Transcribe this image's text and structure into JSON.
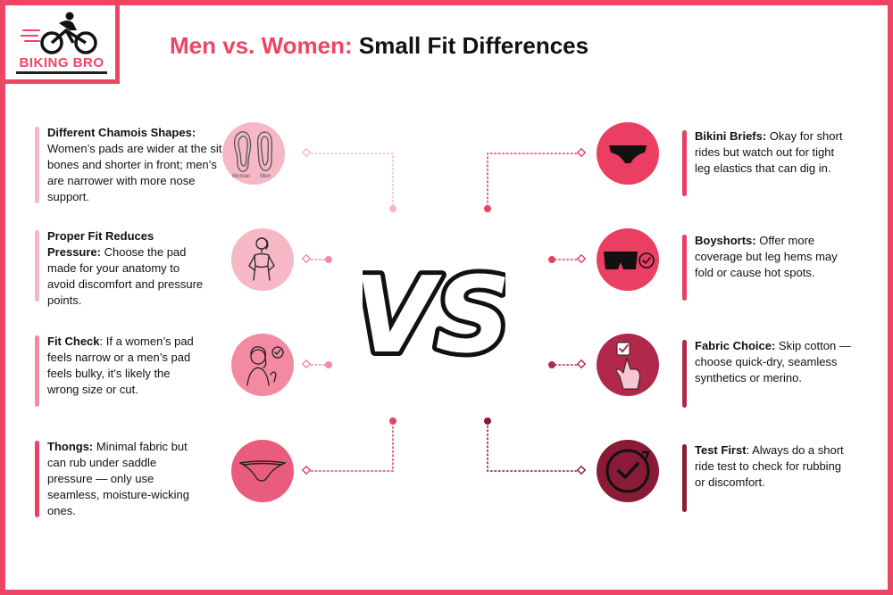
{
  "logo": {
    "text": "BIKING BRO"
  },
  "title": {
    "accent": "Men vs. Women:",
    "rest": " Small Fit Differences"
  },
  "center": {
    "vs": "VS"
  },
  "colors": {
    "accent": "#ef4565",
    "pink_light": "#f7b8c6",
    "pink_mid": "#f38aa2",
    "rose": "#ea3f63",
    "maroon": "#b0284a",
    "dark": "#8a1b37"
  },
  "left_items": [
    {
      "heading": "Different Chamois Shapes:",
      "text": " Women’s pads are wider at the sit bones and shorter in front; men’s are narrower with more nose support.",
      "icon": "chamois-pads-icon",
      "icon_labels": [
        "Women",
        "Men"
      ]
    },
    {
      "heading": "Proper Fit Reduces Pressure:",
      "text": " Choose the pad made for your anatomy to avoid discomfort and pressure points.",
      "icon": "woman-figure-icon"
    },
    {
      "heading": "Fit Check",
      "text": ": If a women’s pad feels narrow or a men’s pad feels bulky, it’s likely the wrong size or cut.",
      "icon": "woman-check-icon"
    },
    {
      "heading": "Thongs:",
      "text": " Minimal fabric but can rub under saddle pressure — only use seamless, moisture-wicking ones.",
      "icon": "thong-icon"
    }
  ],
  "right_items": [
    {
      "heading": "Bikini Briefs:",
      "text": " Okay for short rides but watch out for tight leg elastics that can dig in.",
      "icon": "bikini-brief-icon"
    },
    {
      "heading": "Boyshorts:",
      "text": " Offer more coverage but leg hems may fold or cause hot spots.",
      "icon": "boyshorts-icon"
    },
    {
      "heading": "Fabric Choice:",
      "text": " Skip cotton — choose quick-dry, seamless synthetics or merino.",
      "icon": "hand-checkbox-icon"
    },
    {
      "heading": "Test First",
      "text": ": Always do a short ride test to check for rubbing or discomfort.",
      "icon": "circular-check-icon"
    }
  ]
}
